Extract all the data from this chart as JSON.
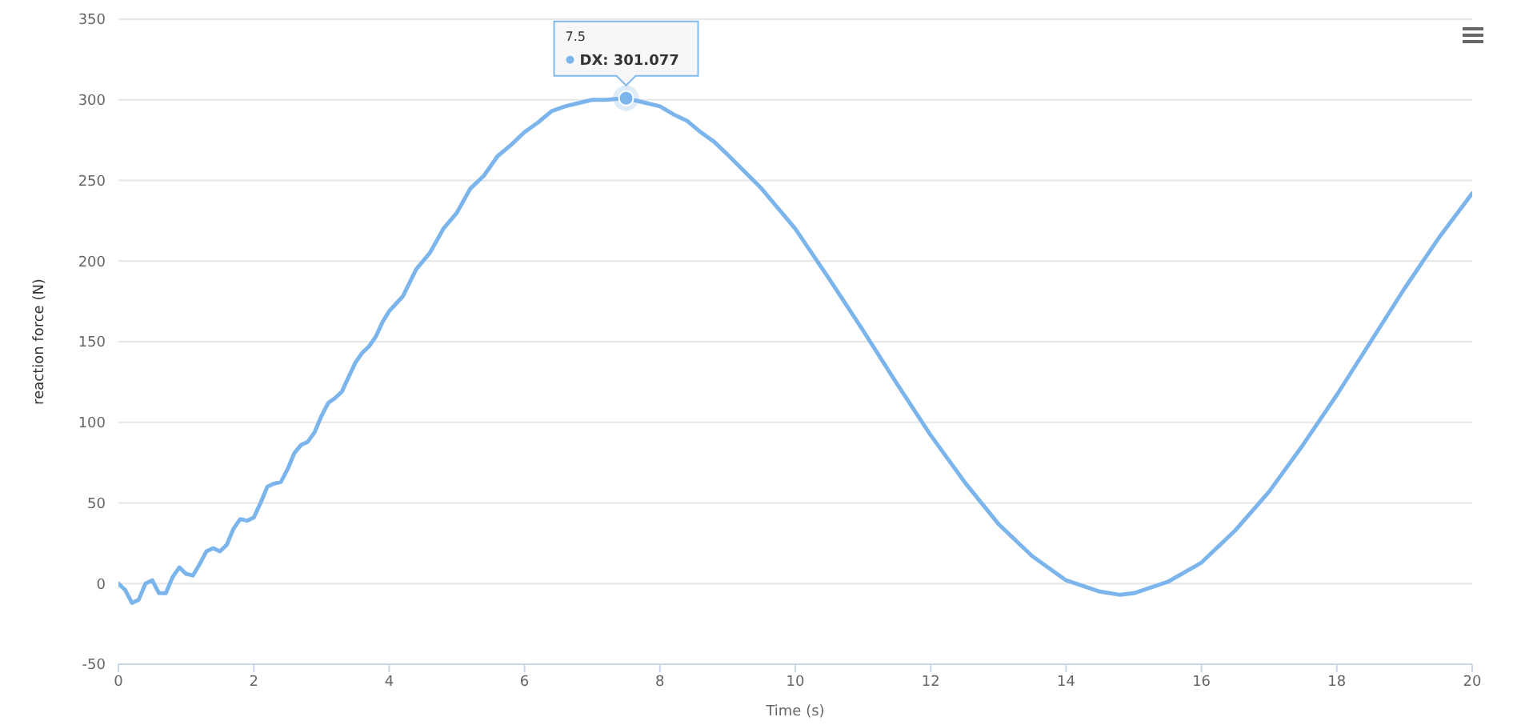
{
  "chart_data": {
    "type": "line",
    "xlabel": "Time (s)",
    "ylabel": "reaction force (N)",
    "xlim": [
      0,
      20
    ],
    "xticks": [
      0,
      2,
      4,
      6,
      8,
      10,
      12,
      14,
      16,
      18,
      20
    ],
    "ylim": [
      -50,
      350
    ],
    "yticks": [
      -50,
      0,
      50,
      100,
      150,
      200,
      250,
      300,
      350
    ],
    "grid": "y",
    "marker": "none",
    "line_style": "solid",
    "series": [
      {
        "color": "#7cb5ec",
        "x": [
          0,
          0.1,
          0.2,
          0.3,
          0.4,
          0.5,
          0.6,
          0.7,
          0.8,
          0.9,
          1.0,
          1.1,
          1.2,
          1.3,
          1.4,
          1.5,
          1.6,
          1.7,
          1.8,
          1.9,
          2.0,
          2.1,
          2.2,
          2.3,
          2.4,
          2.5,
          2.6,
          2.7,
          2.8,
          2.9,
          3.0,
          3.1,
          3.2,
          3.3,
          3.4,
          3.5,
          3.6,
          3.7,
          3.8,
          3.9,
          4.0,
          4.2,
          4.4,
          4.6,
          4.8,
          5.0,
          5.2,
          5.4,
          5.6,
          5.8,
          6.0,
          6.2,
          6.4,
          6.6,
          6.8,
          7.0,
          7.2,
          7.5,
          7.8,
          8.0,
          8.2,
          8.4,
          8.6,
          8.8,
          9.0,
          9.5,
          10,
          10.5,
          11,
          11.5,
          12,
          12.5,
          13,
          13.5,
          14,
          14.5,
          14.8,
          15,
          15.5,
          16,
          16.5,
          17,
          17.5,
          18,
          18.5,
          19,
          19.5,
          20
        ],
        "values": [
          0,
          -4,
          -12,
          -10,
          0,
          2,
          -6,
          -6,
          4,
          10,
          6,
          5,
          12,
          20,
          22,
          20,
          24,
          34,
          40,
          39,
          41,
          50,
          60,
          62,
          63,
          71,
          81,
          86,
          88,
          94,
          104,
          112,
          115,
          119,
          128,
          137,
          143,
          147,
          153,
          162,
          169,
          178,
          195,
          205,
          220,
          230,
          245,
          253,
          265,
          272,
          280,
          286,
          293,
          296,
          298,
          300,
          300,
          301,
          298,
          296,
          291,
          287,
          280,
          274,
          266,
          245,
          220,
          189,
          157,
          124,
          92,
          63,
          37,
          17,
          2,
          -5,
          -7,
          -6,
          1,
          13,
          33,
          57,
          86,
          117,
          150,
          183,
          214,
          242
        ]
      }
    ],
    "annotations": [
      "7.5",
      "DX: 301.077"
    ]
  }
}
